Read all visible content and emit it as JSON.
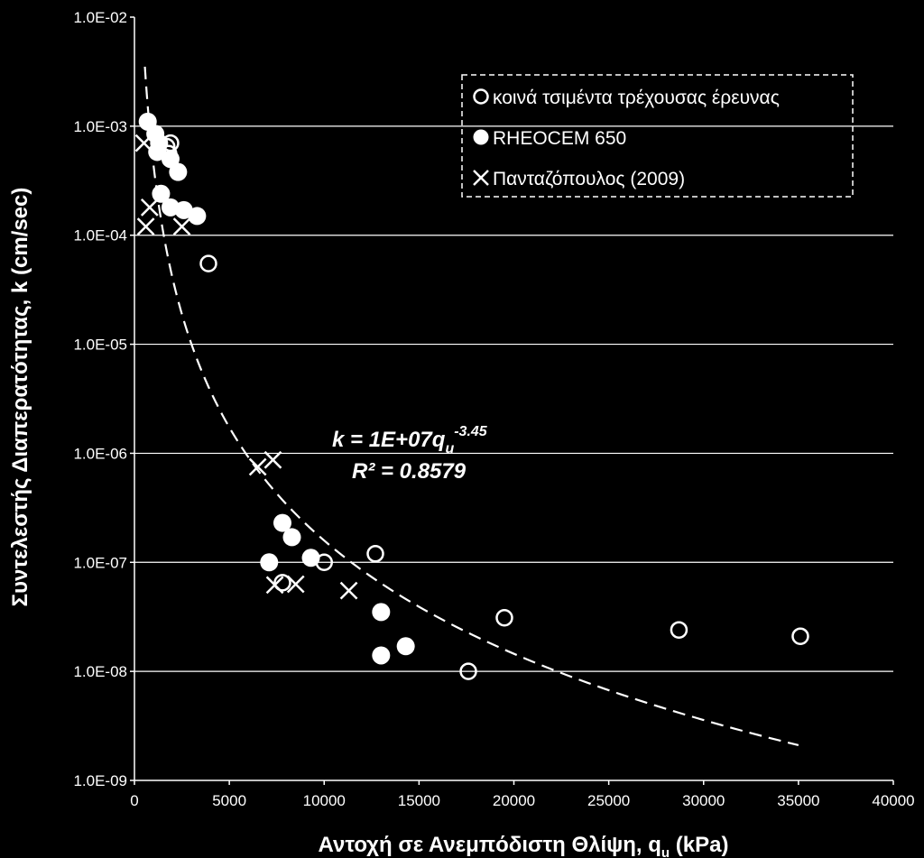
{
  "chart_data": {
    "type": "scatter",
    "title": "",
    "xlabel": {
      "main": "Αντοχή  σε  Ανεμπόδιστη  Θλίψη, q",
      "sub": "u",
      "tail": " (kPa)"
    },
    "ylabel": "Συντελεστής  Διαπερατότητας,  k (cm/sec)",
    "xlim": [
      0,
      40000
    ],
    "ylim": [
      1e-09,
      0.01
    ],
    "y_scale": "log",
    "grid": "horizontal",
    "x_ticks": [
      "0",
      "5000",
      "10000",
      "15000",
      "20000",
      "25000",
      "30000",
      "35000",
      "40000"
    ],
    "y_ticks": [
      "1.0E-09",
      "1.0E-08",
      "1.0E-07",
      "1.0E-06",
      "1.0E-05",
      "1.0E-04",
      "1.0E-03",
      "1.0E-02"
    ],
    "legend_position": "top-right",
    "series": [
      {
        "name": "κοινά τσιμέντα τρέχουσας έρευνας",
        "marker": "open-circle",
        "points": [
          [
            1700,
            0.00065
          ],
          [
            1900,
            0.0007
          ],
          [
            1800,
            0.00056
          ],
          [
            3900,
            5.5e-05
          ],
          [
            7800,
            6.5e-08
          ],
          [
            10000,
            1e-07
          ],
          [
            12700,
            1.2e-07
          ],
          [
            17600,
            1e-08
          ],
          [
            19500,
            3.1e-08
          ],
          [
            28700,
            2.4e-08
          ],
          [
            35100,
            2.1e-08
          ]
        ]
      },
      {
        "name": "RHEOCEM 650",
        "marker": "filled-circle",
        "points": [
          [
            700,
            0.0011
          ],
          [
            1100,
            0.00085
          ],
          [
            1300,
            0.0007
          ],
          [
            1200,
            0.00058
          ],
          [
            1900,
            0.0005
          ],
          [
            2300,
            0.00038
          ],
          [
            1400,
            0.00024
          ],
          [
            1900,
            0.00018
          ],
          [
            2600,
            0.00017
          ],
          [
            3300,
            0.00015
          ],
          [
            7800,
            2.3e-07
          ],
          [
            8300,
            1.7e-07
          ],
          [
            7100,
            1e-07
          ],
          [
            9300,
            1.1e-07
          ],
          [
            13000,
            3.5e-08
          ],
          [
            14300,
            1.7e-08
          ],
          [
            13000,
            1.4e-08
          ]
        ]
      },
      {
        "name": "Πανταζόπουλος (2009)",
        "marker": "cross",
        "points": [
          [
            500,
            0.0007
          ],
          [
            800,
            0.00018
          ],
          [
            600,
            0.00012
          ],
          [
            2500,
            0.00012
          ],
          [
            6500,
            7.5e-07
          ],
          [
            7300,
            8.7e-07
          ],
          [
            7400,
            6.2e-08
          ],
          [
            8500,
            6.3e-08
          ],
          [
            11300,
            5.5e-08
          ]
        ]
      }
    ],
    "trendline": {
      "type": "power",
      "a": 10000000.0,
      "b": -3.45,
      "x_range": [
        550,
        35000
      ],
      "style": "dashed"
    },
    "annotation": {
      "eq_prefix": "k = 1E+07q",
      "eq_sub": "u",
      "eq_sup": "-3.45",
      "r2": "R² = 0.8579"
    },
    "colors": {
      "background": "#000000",
      "foreground": "#ffffff",
      "grid": "#ffffff"
    }
  }
}
